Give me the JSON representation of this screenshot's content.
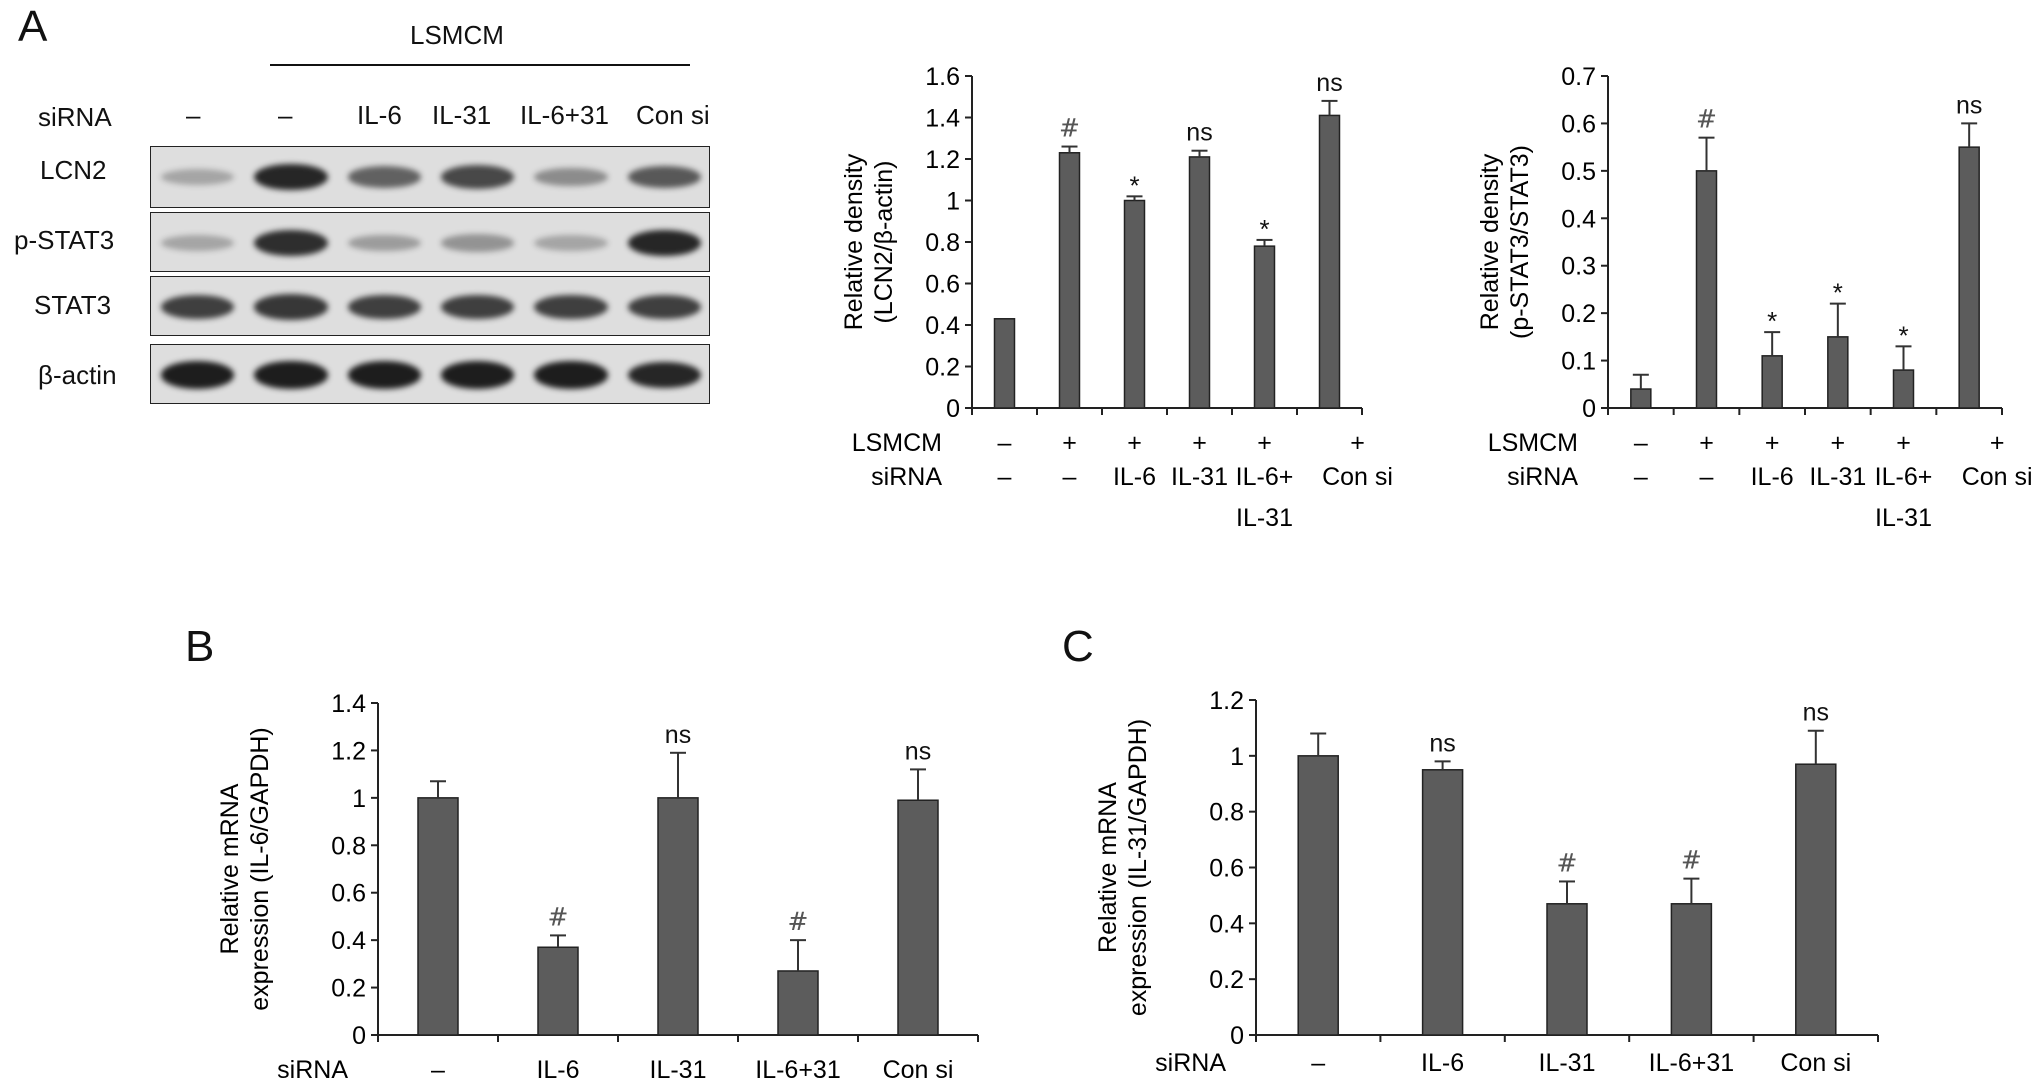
{
  "panel_labels": {
    "a": "A",
    "b": "B",
    "c": "C"
  },
  "western_blot": {
    "treatment_label": "LSMCM",
    "sirna_label": "siRNA",
    "lane_labels": [
      "–",
      "–",
      "IL-6",
      "IL-31",
      "IL-6+31",
      "Con si"
    ],
    "rows": [
      {
        "name": "LCN2",
        "intensities": [
          0.15,
          0.9,
          0.55,
          0.7,
          0.3,
          0.6
        ]
      },
      {
        "name": "p-STAT3",
        "intensities": [
          0.15,
          0.85,
          0.2,
          0.25,
          0.15,
          0.9
        ]
      },
      {
        "name": "STAT3",
        "intensities": [
          0.75,
          0.8,
          0.75,
          0.75,
          0.75,
          0.75
        ]
      },
      {
        "name": "β-actin",
        "intensities": [
          0.95,
          0.95,
          0.95,
          0.95,
          0.95,
          0.9
        ]
      }
    ]
  },
  "chart_data": [
    {
      "type": "bar",
      "ylabel": [
        "Relative density",
        "(LCN2/β-actin)"
      ],
      "ylim": [
        0,
        1.6
      ],
      "yticks": [
        "0",
        "0.2",
        "0.4",
        "0.6",
        "0.8",
        "1",
        "1.2",
        "1.4",
        "1.6"
      ],
      "values": [
        0.43,
        1.23,
        1.0,
        1.21,
        0.78,
        1.41
      ],
      "errors": [
        0.0,
        0.03,
        0.02,
        0.03,
        0.03,
        0.07
      ],
      "annotations": [
        "",
        "#",
        "*",
        "ns",
        "*",
        "ns"
      ],
      "row_labels": [
        "LSMCM",
        "siRNA"
      ],
      "lsmcm_row": [
        "–",
        "+",
        "+",
        "+",
        "+",
        "+"
      ],
      "sirna_row": [
        "–",
        "–",
        "IL-6",
        "IL-31",
        "IL-6+",
        "Con si"
      ],
      "sirna_row2": [
        "",
        "",
        "",
        "",
        "IL-31",
        ""
      ]
    },
    {
      "type": "bar",
      "ylabel": [
        "Relative density",
        "(p-STAT3/STAT3)"
      ],
      "ylim": [
        0,
        0.7
      ],
      "yticks": [
        "0",
        "0.1",
        "0.2",
        "0.3",
        "0.4",
        "0.5",
        "0.6",
        "0.7"
      ],
      "values": [
        0.04,
        0.5,
        0.11,
        0.15,
        0.08,
        0.55
      ],
      "errors": [
        0.03,
        0.07,
        0.05,
        0.07,
        0.05,
        0.05
      ],
      "annotations": [
        "",
        "#",
        "*",
        "*",
        "*",
        "ns"
      ],
      "row_labels": [
        "LSMCM",
        "siRNA"
      ],
      "lsmcm_row": [
        "–",
        "+",
        "+",
        "+",
        "+",
        "+"
      ],
      "sirna_row": [
        "–",
        "–",
        "IL-6",
        "IL-31",
        "IL-6+",
        "Con si"
      ],
      "sirna_row2": [
        "",
        "",
        "",
        "",
        "IL-31",
        ""
      ]
    },
    {
      "type": "bar",
      "ylabel": [
        "Relative mRNA",
        "expression (IL-6/GAPDH)"
      ],
      "ylim": [
        0,
        1.4
      ],
      "yticks": [
        "0",
        "0.2",
        "0.4",
        "0.6",
        "0.8",
        "1",
        "1.2",
        "1.4"
      ],
      "categories": [
        "–",
        "IL-6",
        "IL-31",
        "IL-6+31",
        "Con si"
      ],
      "values": [
        1.0,
        0.37,
        1.0,
        0.27,
        0.99
      ],
      "errors": [
        0.07,
        0.05,
        0.19,
        0.13,
        0.13
      ],
      "annotations": [
        "",
        "#",
        "ns",
        "#",
        "ns"
      ],
      "xrow_label": "siRNA"
    },
    {
      "type": "bar",
      "ylabel": [
        "Relative mRNA",
        "expression (IL-31/GAPDH)"
      ],
      "ylim": [
        0,
        1.2
      ],
      "yticks": [
        "0",
        "0.2",
        "0.4",
        "0.6",
        "0.8",
        "1",
        "1.2"
      ],
      "categories": [
        "–",
        "IL-6",
        "IL-31",
        "IL-6+31",
        "Con si"
      ],
      "values": [
        1.0,
        0.95,
        0.47,
        0.47,
        0.97
      ],
      "errors": [
        0.08,
        0.03,
        0.08,
        0.09,
        0.12
      ],
      "annotations": [
        "",
        "ns",
        "#",
        "#",
        "ns"
      ],
      "xrow_label": "siRNA"
    }
  ]
}
